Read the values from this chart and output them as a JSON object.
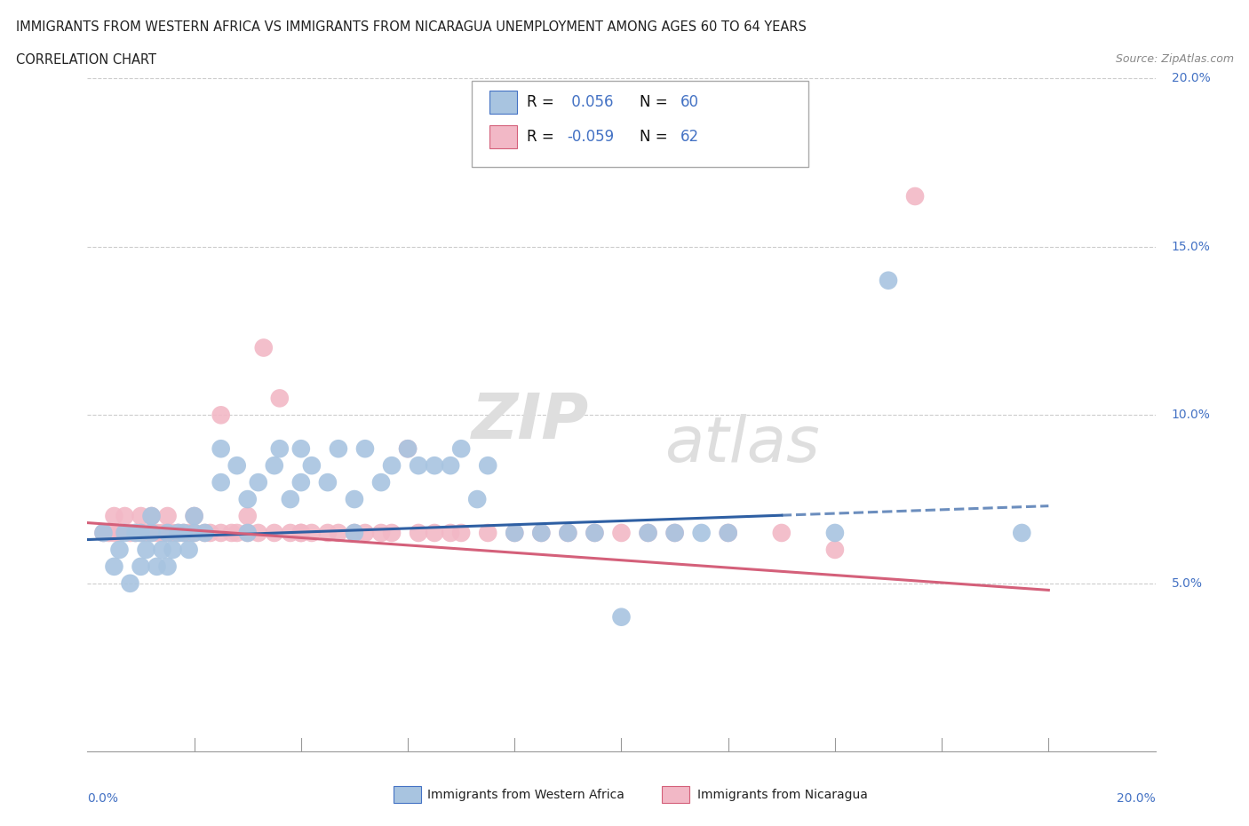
{
  "title_line1": "IMMIGRANTS FROM WESTERN AFRICA VS IMMIGRANTS FROM NICARAGUA UNEMPLOYMENT AMONG AGES 60 TO 64 YEARS",
  "title_line2": "CORRELATION CHART",
  "source_text": "Source: ZipAtlas.com",
  "legend_label1": "Immigrants from Western Africa",
  "legend_label2": "Immigrants from Nicaragua",
  "r1": "0.056",
  "n1": "60",
  "r2": "-0.059",
  "n2": "62",
  "xlim": [
    0.0,
    0.2
  ],
  "ylim": [
    0.0,
    0.2
  ],
  "color_blue": "#a8c4e0",
  "color_pink": "#f2b8c6",
  "color_blue_line": "#2e5fa3",
  "color_pink_line": "#d4607a",
  "color_text_blue": "#4472c4",
  "color_grid": "#cccccc",
  "blue_scatter_x": [
    0.003,
    0.005,
    0.006,
    0.007,
    0.008,
    0.009,
    0.01,
    0.01,
    0.011,
    0.012,
    0.012,
    0.013,
    0.014,
    0.015,
    0.015,
    0.016,
    0.017,
    0.018,
    0.019,
    0.02,
    0.02,
    0.022,
    0.025,
    0.025,
    0.028,
    0.03,
    0.03,
    0.032,
    0.035,
    0.036,
    0.038,
    0.04,
    0.04,
    0.042,
    0.045,
    0.047,
    0.05,
    0.05,
    0.052,
    0.055,
    0.057,
    0.06,
    0.062,
    0.065,
    0.068,
    0.07,
    0.073,
    0.075,
    0.08,
    0.085,
    0.09,
    0.095,
    0.1,
    0.105,
    0.11,
    0.115,
    0.12,
    0.14,
    0.15,
    0.175
  ],
  "blue_scatter_y": [
    0.065,
    0.055,
    0.06,
    0.065,
    0.05,
    0.065,
    0.065,
    0.055,
    0.06,
    0.065,
    0.07,
    0.055,
    0.06,
    0.065,
    0.055,
    0.06,
    0.065,
    0.065,
    0.06,
    0.065,
    0.07,
    0.065,
    0.09,
    0.08,
    0.085,
    0.075,
    0.065,
    0.08,
    0.085,
    0.09,
    0.075,
    0.09,
    0.08,
    0.085,
    0.08,
    0.09,
    0.075,
    0.065,
    0.09,
    0.08,
    0.085,
    0.09,
    0.085,
    0.085,
    0.085,
    0.09,
    0.075,
    0.085,
    0.065,
    0.065,
    0.065,
    0.065,
    0.04,
    0.065,
    0.065,
    0.065,
    0.065,
    0.065,
    0.14,
    0.065
  ],
  "pink_scatter_x": [
    0.003,
    0.004,
    0.005,
    0.005,
    0.006,
    0.007,
    0.008,
    0.009,
    0.01,
    0.01,
    0.011,
    0.012,
    0.012,
    0.013,
    0.014,
    0.015,
    0.015,
    0.016,
    0.017,
    0.018,
    0.019,
    0.02,
    0.02,
    0.022,
    0.023,
    0.025,
    0.025,
    0.027,
    0.028,
    0.03,
    0.03,
    0.032,
    0.033,
    0.035,
    0.036,
    0.038,
    0.04,
    0.04,
    0.042,
    0.045,
    0.047,
    0.05,
    0.052,
    0.055,
    0.057,
    0.06,
    0.062,
    0.065,
    0.068,
    0.07,
    0.075,
    0.08,
    0.085,
    0.09,
    0.095,
    0.1,
    0.105,
    0.11,
    0.12,
    0.13,
    0.14,
    0.155
  ],
  "pink_scatter_y": [
    0.065,
    0.065,
    0.065,
    0.07,
    0.065,
    0.07,
    0.065,
    0.065,
    0.07,
    0.065,
    0.065,
    0.065,
    0.07,
    0.065,
    0.065,
    0.065,
    0.07,
    0.065,
    0.065,
    0.065,
    0.065,
    0.065,
    0.07,
    0.065,
    0.065,
    0.065,
    0.1,
    0.065,
    0.065,
    0.065,
    0.07,
    0.065,
    0.12,
    0.065,
    0.105,
    0.065,
    0.065,
    0.065,
    0.065,
    0.065,
    0.065,
    0.065,
    0.065,
    0.065,
    0.065,
    0.09,
    0.065,
    0.065,
    0.065,
    0.065,
    0.065,
    0.065,
    0.065,
    0.065,
    0.065,
    0.065,
    0.065,
    0.065,
    0.065,
    0.065,
    0.06,
    0.165
  ],
  "blue_trend_x": [
    0.0,
    0.18
  ],
  "blue_trend_y": [
    0.063,
    0.073
  ],
  "pink_trend_x": [
    0.0,
    0.18
  ],
  "pink_trend_y": [
    0.068,
    0.048
  ]
}
